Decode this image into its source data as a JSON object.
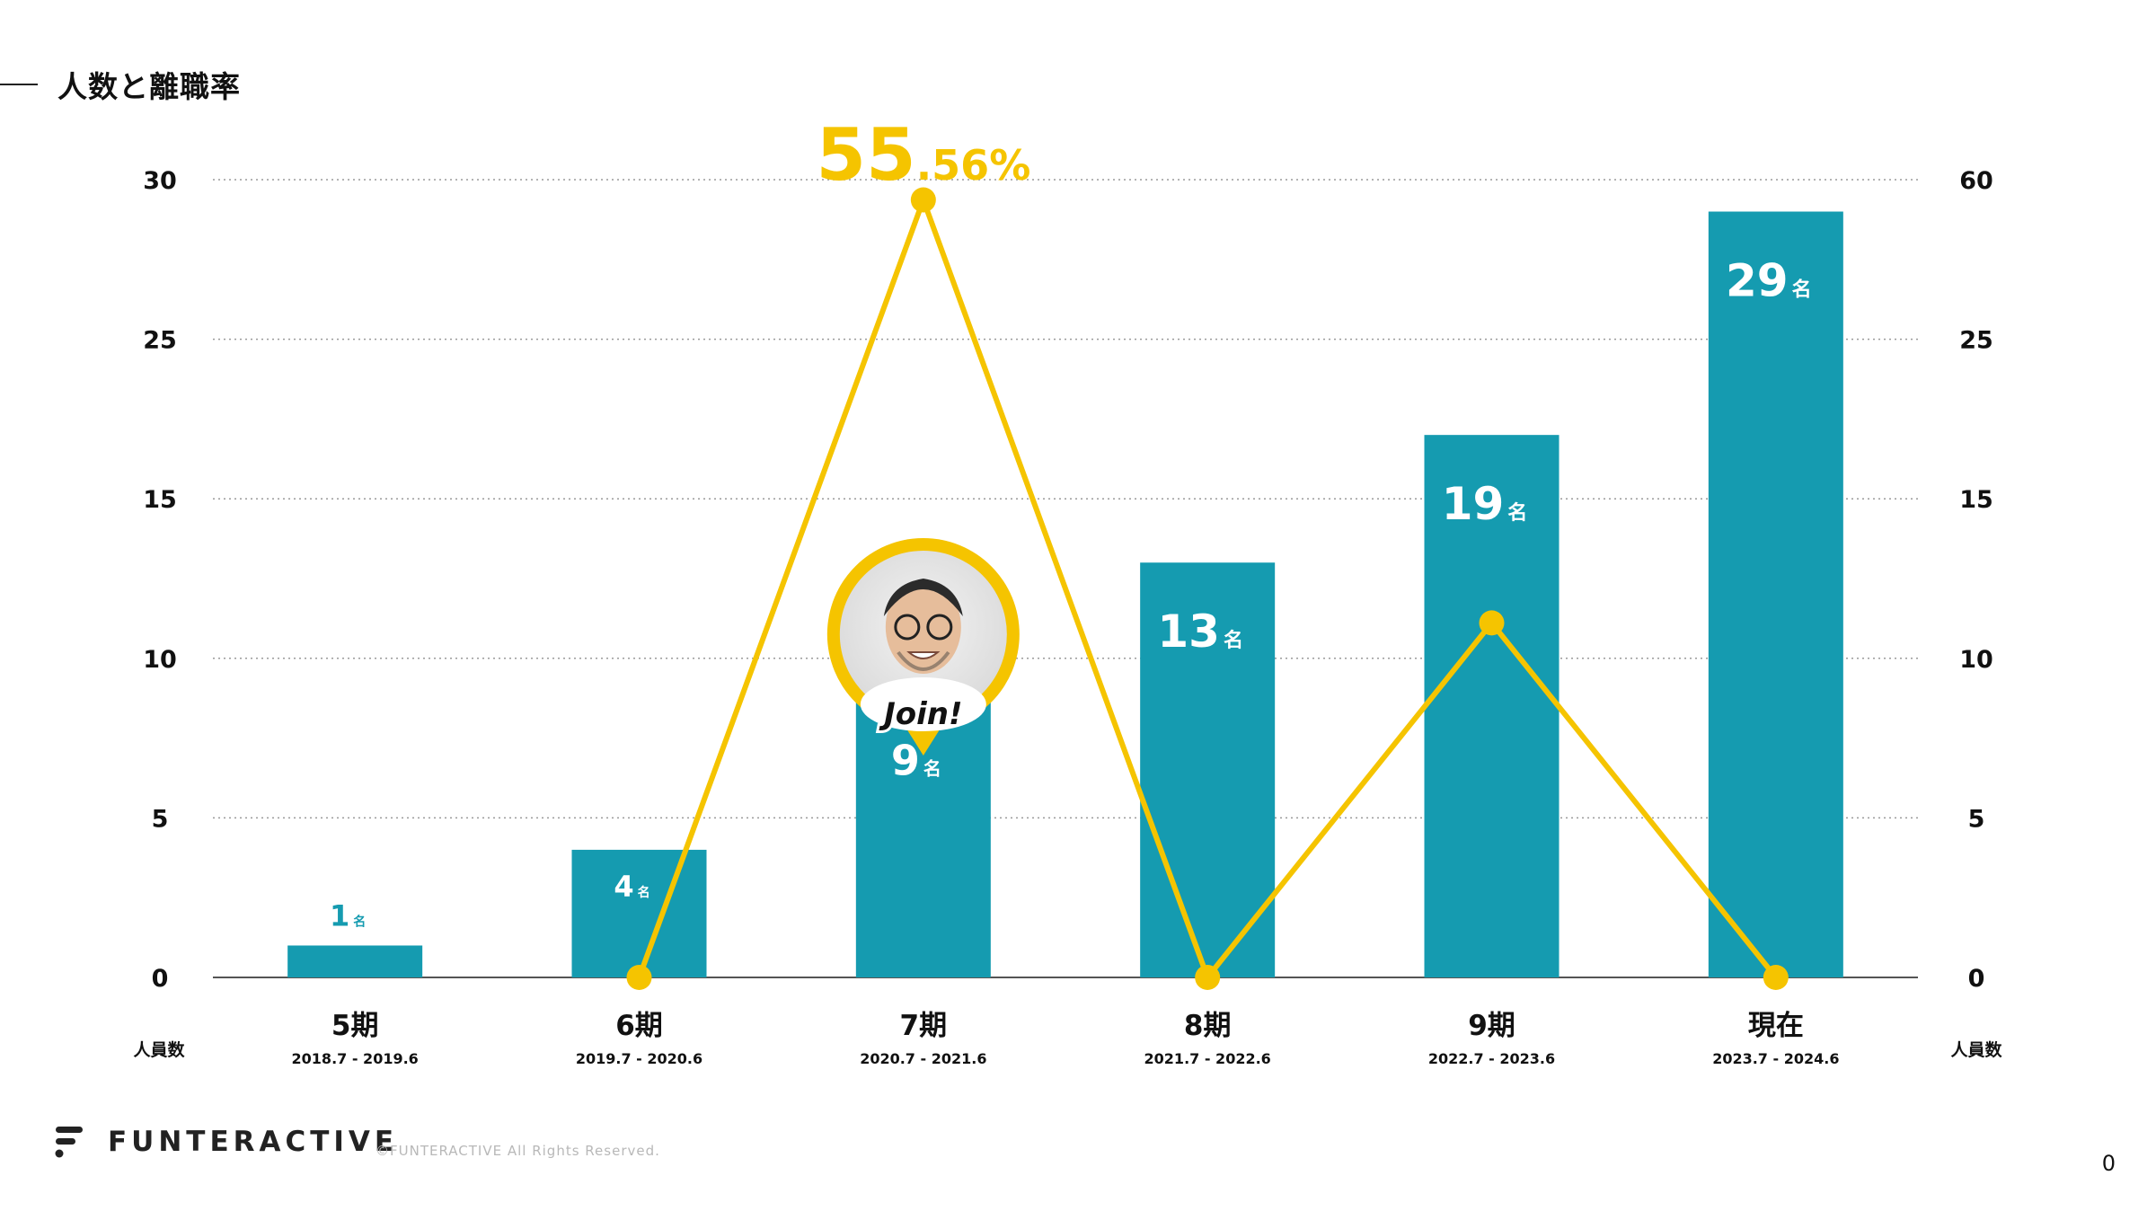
{
  "page": {
    "title": "人数と離職率",
    "brand": "FUNTERACTIVE",
    "copyright": "©FUNTERACTIVE All Rights Reserved.",
    "page_number": "0",
    "join_label": "Join!"
  },
  "colors": {
    "bar": "#159bb0",
    "line": "#f5c400",
    "axis": "#111111",
    "grid": "#9a9a9a"
  },
  "chart_data": {
    "type": "bar",
    "title": "人数と離職率",
    "categories": [
      "5期",
      "6期",
      "7期",
      "8期",
      "9期",
      "現在"
    ],
    "periods": [
      "2018.7 - 2019.6",
      "2019.7 - 2020.6",
      "2020.7 - 2021.6",
      "2021.7 - 2022.6",
      "2022.7 - 2023.6",
      "2023.7 - 2024.6"
    ],
    "bar_labels": [
      "1",
      "4",
      "9",
      "13",
      "19",
      "29"
    ],
    "unit": "名",
    "series": [
      {
        "type": "bar",
        "axis": "left",
        "values": [
          1,
          4,
          9,
          13,
          19,
          29
        ]
      },
      {
        "type": "line",
        "axis": "right",
        "values": [
          null,
          0,
          55.56,
          0,
          11.11,
          0
        ]
      }
    ],
    "left_axis": {
      "label": "人員数",
      "ticks": [
        "30",
        "25",
        "15",
        "10",
        "5",
        "0"
      ]
    },
    "right_axis": {
      "label": "人員数",
      "ticks": [
        "60",
        "25",
        "15",
        "10",
        "5",
        "0"
      ]
    },
    "peak_label_main": "55",
    "peak_label_sub": ".56%",
    "grid": true
  }
}
